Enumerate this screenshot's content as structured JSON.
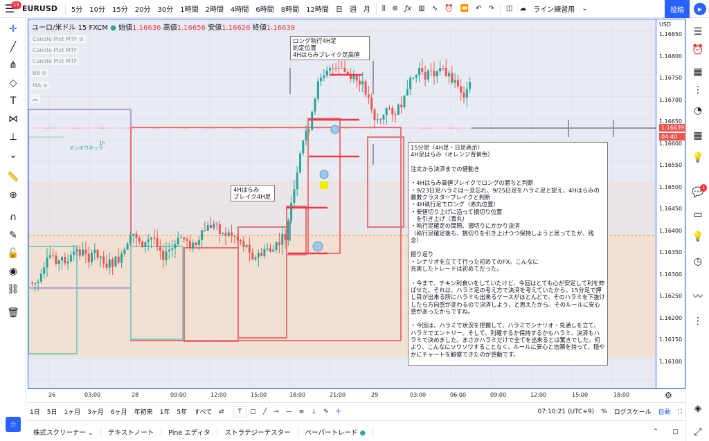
{
  "topbar": {
    "menu_badge": "13",
    "symbol": "EURUSD",
    "timeframes": [
      "5分",
      "10分",
      "15分",
      "20分",
      "30分",
      "1時間",
      "2時間",
      "4時間",
      "6時間",
      "8時間",
      "12時間",
      "日",
      "週",
      "月"
    ],
    "active_timeframe": "15分",
    "layout_name": "ライン練習用",
    "publish_label": "投稿"
  },
  "legend": {
    "pair": "ユーロ/米ドル",
    "interval": "15",
    "broker": "FXCM",
    "open_label": "始値",
    "open": "1.16636",
    "high_label": "高値",
    "high": "1.16656",
    "low_label": "安値",
    "low": "1.16626",
    "close_label": "終値",
    "close": "1.16639"
  },
  "indicators": [
    "Candle Plot MTF",
    "Candle Plot MTF",
    "Candle Plot MTF",
    "BB",
    "MA"
  ],
  "indicator_label_1h": "1h",
  "indicator_label_mambo": "マンボウネック",
  "price_scale": {
    "currency": "USD",
    "ticks": [
      "1.16850",
      "1.16800",
      "1.16750",
      "1.16700",
      "1.16650",
      "1.16600",
      "1.16550",
      "1.16500",
      "1.16450",
      "1.16400",
      "1.16350",
      "1.16300",
      "1.16250",
      "1.16200",
      "1.16150",
      "1.16100"
    ],
    "current_price": "1.16639",
    "countdown": "04:40"
  },
  "time_scale": [
    "26",
    "03:00",
    "28",
    "09:00",
    "12:00",
    "15:00",
    "18:00",
    "21:00",
    "29",
    "03:00",
    "06:00",
    "09:00",
    "12:00",
    "15:00",
    "18:00"
  ],
  "notes": {
    "top": "ロング執行4H足\n約定位置\n4Hはらみブレイク足高値",
    "mid": "4Hはらみ\nブレイク4H足",
    "big": "15分足（4H足・日足表示）\n4H足はらみ（オレンジ背景色）\n\n注文から決済までの値動き\n\n・4Hはらみ高値ブレイクでロングの勝ちと判断\n・9/23日足ハラミは一旦忘れ、9/25日足をハラミ足と捉え、4Hはらみの勝敗クラスターブレイクと判断\n・4H執行足でロング（赤丸位置）\n・安値切り上げに沿って損切り位置\n　を引き上げ（青丸）\n・執行足確定の間際、損切りにかかり決済\n（執行足確定後も、損切りを引き上げつつ保持しようと思ってたが、残念）\n\n振り返り\n・シナリオを立てて行った初めてのFX。こんなに\n充実したトレードは初めてだった。\n\n・今まで、チキン利食いをしていたけど、今回はとても心が安定して利を伸ばせた。それは、ハラミ足の考え方で決済を考えていたから。15分足で押し目が出来る所にハラミも出来るケースがほとんどで、そのハラミを下抜けしたら方向感が変わるので決済しよう、と思えたから。そのルールに安心感があったからですね。\n\n・今回は、ハラミで状況を把握して、ハラミでシナリオ・見通しを立て、ハラミでエントリー。そして、利確するか保持するかもハラミ、決済もハラミで決めました。まさかハラミだけで全てを出来るとは驚きでした。何より、こんなにソワソワすることなく、ルールに安心と信頼を持って、穏やかにチャートを観察できたのが感動です。"
  },
  "bottombar": {
    "ranges": [
      "1日",
      "5日",
      "1ヶ月",
      "3ヶ月",
      "6ヶ月",
      "年初来",
      "1年",
      "5年",
      "すべて"
    ],
    "clock": "07:10:21 (UTC+9)",
    "percent": "%",
    "log": "ログスケール",
    "auto": "自動"
  },
  "footer": {
    "tabs": [
      "株式スクリーナー",
      "テキストノート",
      "Pine エディタ",
      "ストラテジーテスター",
      "ペーパートレード"
    ]
  },
  "colors": {
    "accent": "#2962ff",
    "up": "#26a69a",
    "down": "#ef5350",
    "orange_bg": "#f5e1cf"
  }
}
